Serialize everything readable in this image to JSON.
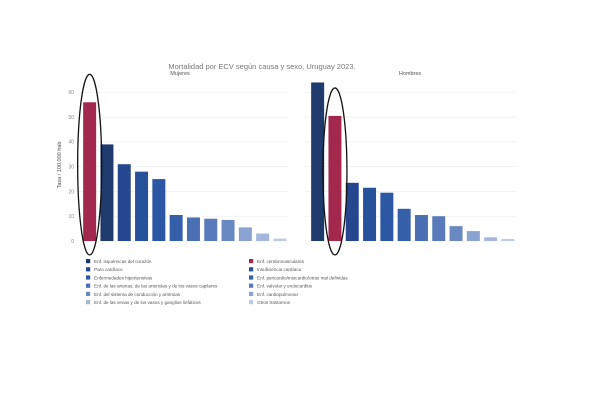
{
  "chart_data": {
    "type": "bar",
    "title": "Mortalidad por ECV según causa y sexo. Uruguay 2023.",
    "ylabel": "Tasa / 100.000 hab",
    "ylim": [
      0,
      65
    ],
    "yticks": [
      0,
      10,
      20,
      30,
      40,
      50,
      60
    ],
    "grid": true,
    "legend_position": "bottom",
    "panels": [
      {
        "name": "Mujeres",
        "values": [
          56,
          39,
          31,
          28,
          25,
          10.5,
          9.5,
          9,
          8.5,
          5.5,
          3,
          1
        ]
      },
      {
        "name": "Hombres",
        "values": [
          64,
          50.5,
          23.5,
          21.5,
          19.5,
          13,
          10.5,
          10,
          6,
          4,
          1.5,
          0.8
        ]
      }
    ],
    "categories_order": [
      {
        "panel": 0,
        "cats": [
          1,
          0,
          2,
          3,
          4,
          5,
          6,
          7,
          8,
          9,
          10,
          11
        ]
      },
      {
        "panel": 1,
        "cats": [
          0,
          1,
          2,
          3,
          4,
          5,
          6,
          7,
          8,
          9,
          10,
          11
        ]
      }
    ],
    "legend": [
      {
        "label": "Enf. isquémicas del corazón",
        "color": "#1f3a6d"
      },
      {
        "label": "Enf. cerebrovasculares",
        "color": "#a3284d"
      },
      {
        "label": "Paro cardíaco",
        "color": "#24478f"
      },
      {
        "label": "Insuficiencia cardíaca",
        "color": "#28519c"
      },
      {
        "label": "Enfermedades hipertensivas",
        "color": "#2c57a5"
      },
      {
        "label": "Enf. pericardio/miocardio/otras mal definidas",
        "color": "#355fa8"
      },
      {
        "label": "Enf. de las arterias, de las arteriolas y de los vasos capilares",
        "color": "#4a6fb3"
      },
      {
        "label": "Enf. valvular y endocarditis",
        "color": "#5a7bbb"
      },
      {
        "label": "Enf. del sistema de conducción y arritmias",
        "color": "#6a88c2"
      },
      {
        "label": "Enf. cardiopulmonar",
        "color": "#8aa3d0"
      },
      {
        "label": "Enf. de las venas y de los vasos y ganglios linfáticos",
        "color": "#a5b8dc"
      },
      {
        "label": "Otros trastornos",
        "color": "#bccbe6"
      }
    ],
    "annotations": [
      {
        "type": "ellipse",
        "panel": 0,
        "bar_index": 0
      },
      {
        "type": "ellipse",
        "panel": 1,
        "bar_index": 1
      }
    ]
  }
}
